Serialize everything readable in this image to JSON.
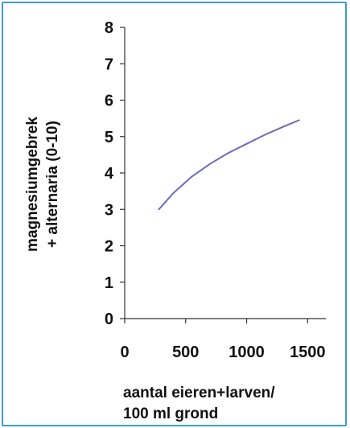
{
  "chart_data": {
    "type": "line",
    "ylabel_lines": [
      "magnesiumgebrek",
      "+ alternaria (0-10)"
    ],
    "xlabel_lines": [
      "aantal eieren+larven/",
      "100 ml grond"
    ],
    "xlim": [
      0,
      1650
    ],
    "ylim": [
      0,
      8
    ],
    "xticks": [
      0,
      500,
      1000,
      1500
    ],
    "yticks": [
      0,
      1,
      2,
      3,
      4,
      5,
      6,
      7,
      8
    ],
    "grid": false,
    "series": [
      {
        "x": [
          280,
          400,
          550,
          700,
          850,
          1000,
          1150,
          1300,
          1430
        ],
        "y": [
          3.0,
          3.45,
          3.9,
          4.25,
          4.55,
          4.8,
          5.05,
          5.27,
          5.45
        ]
      }
    ]
  },
  "colors": {
    "frame": "#3f9bd3",
    "line": "#6c6ab8",
    "axis": "#333333"
  }
}
